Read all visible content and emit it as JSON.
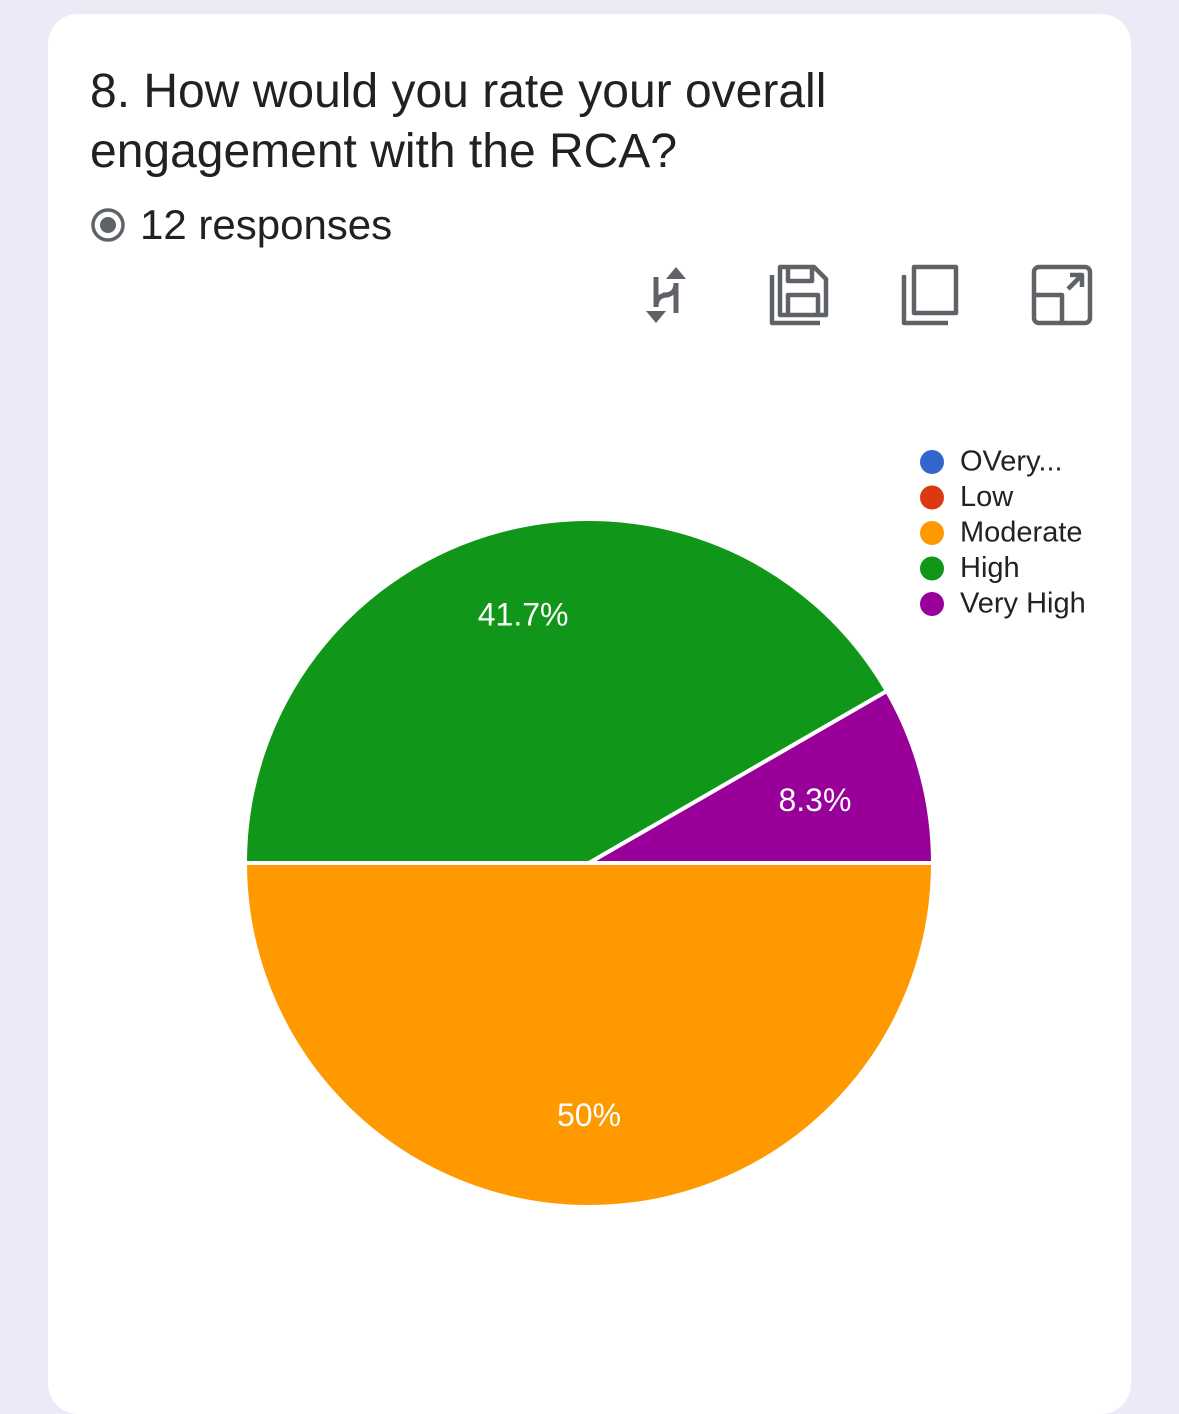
{
  "question": {
    "title": "8. How would you rate your overall engagement with the RCA?",
    "responses_text": "12 responses"
  },
  "toolbar": {
    "icons": [
      "swap-axes-icon",
      "save-icon",
      "copy-icon",
      "expand-icon"
    ]
  },
  "chart_data": {
    "type": "pie",
    "title": "8. How would you rate your overall engagement with the RCA?",
    "total_responses": 12,
    "legend_position": "top-right",
    "slices": [
      {
        "label": "OVery...",
        "value": 0,
        "percent": 0,
        "percent_label": "",
        "color": "#3366cc"
      },
      {
        "label": "Low",
        "value": 0,
        "percent": 0,
        "percent_label": "",
        "color": "#dc3912"
      },
      {
        "label": "Moderate",
        "value": 6,
        "percent": 50,
        "percent_label": "50%",
        "color": "#ff9900"
      },
      {
        "label": "High",
        "value": 5,
        "percent": 41.7,
        "percent_label": "41.7%",
        "color": "#109618"
      },
      {
        "label": "Very High",
        "value": 1,
        "percent": 8.3,
        "percent_label": "8.3%",
        "color": "#990099"
      }
    ]
  }
}
